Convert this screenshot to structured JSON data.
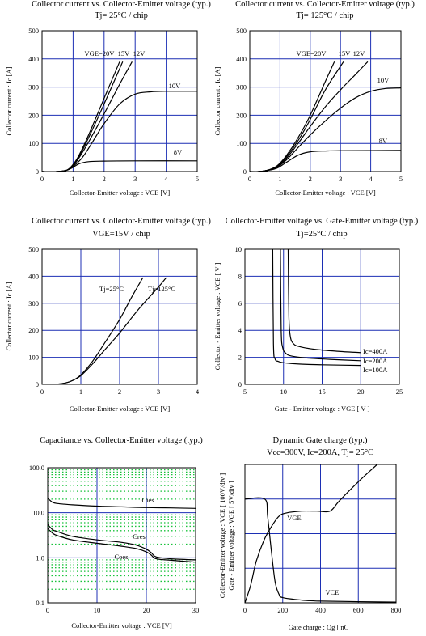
{
  "chart_data": [
    {
      "type": "line",
      "title": "Collector current vs. Collector-Emitter voltage (typ.)",
      "subtitle": "Tj= 25°C / chip",
      "xlabel": "Collector-Emitter voltage : VCE [V]",
      "ylabel": "Collector current : Ic [A]",
      "xlim": [
        0,
        5
      ],
      "ylim": [
        0,
        500
      ],
      "xticks": [
        "0",
        "1",
        "2",
        "3",
        "4",
        "5"
      ],
      "yticks": [
        "0",
        "100",
        "200",
        "300",
        "400",
        "500"
      ],
      "grid": true,
      "series": [
        {
          "name": "VGE=20V",
          "x": [
            0,
            0.5,
            0.8,
            1.0,
            1.2,
            1.5,
            2.0,
            2.5
          ],
          "y": [
            0,
            0,
            5,
            25,
            60,
            130,
            260,
            390
          ]
        },
        {
          "name": "15V",
          "x": [
            0,
            0.5,
            0.8,
            1.0,
            1.2,
            1.5,
            2.0,
            2.6
          ],
          "y": [
            0,
            0,
            5,
            22,
            55,
            120,
            240,
            390
          ]
        },
        {
          "name": "12V",
          "x": [
            0,
            0.5,
            0.8,
            1.0,
            1.2,
            1.5,
            2.0,
            2.5,
            2.9
          ],
          "y": [
            0,
            0,
            5,
            20,
            50,
            105,
            205,
            310,
            390
          ]
        },
        {
          "name": "10V",
          "x": [
            0,
            0.5,
            0.8,
            1.0,
            1.3,
            1.6,
            2.0,
            2.5,
            3.0,
            3.5,
            4.0,
            5.0
          ],
          "y": [
            0,
            0,
            5,
            18,
            50,
            100,
            170,
            240,
            275,
            283,
            285,
            285
          ]
        },
        {
          "name": "8V",
          "x": [
            0,
            0.5,
            0.8,
            1.0,
            1.2,
            1.5,
            2.0,
            3.0,
            5.0
          ],
          "y": [
            0,
            0,
            5,
            15,
            28,
            35,
            37,
            38,
            38
          ]
        }
      ]
    },
    {
      "type": "line",
      "title": "Collector current vs. Collector-Emitter voltage (typ.)",
      "subtitle": "Tj= 125°C / chip",
      "xlabel": "Collector-Emitter voltage : VCE [V]",
      "ylabel": "Collector current : Ic [A]",
      "xlim": [
        0,
        5
      ],
      "ylim": [
        0,
        500
      ],
      "xticks": [
        "0",
        "1",
        "2",
        "3",
        "4",
        "5"
      ],
      "yticks": [
        "0",
        "100",
        "200",
        "300",
        "400",
        "500"
      ],
      "grid": true,
      "series": [
        {
          "name": "VGE=20V",
          "x": [
            0,
            0.3,
            0.6,
            0.9,
            1.2,
            1.6,
            2.0,
            2.5,
            2.8
          ],
          "y": [
            0,
            0,
            5,
            20,
            55,
            120,
            200,
            320,
            390
          ]
        },
        {
          "name": "15V",
          "x": [
            0,
            0.3,
            0.6,
            0.9,
            1.2,
            1.6,
            2.0,
            2.5,
            3.1
          ],
          "y": [
            0,
            0,
            5,
            18,
            50,
            110,
            185,
            290,
            390
          ]
        },
        {
          "name": "12V",
          "x": [
            0,
            0.3,
            0.6,
            0.9,
            1.2,
            1.6,
            2.0,
            2.5,
            3.0,
            3.5,
            3.9
          ],
          "y": [
            0,
            0,
            5,
            16,
            45,
            100,
            160,
            230,
            290,
            345,
            390
          ]
        },
        {
          "name": "10V",
          "x": [
            0,
            0.3,
            0.6,
            0.9,
            1.2,
            1.6,
            2.0,
            2.5,
            3.0,
            3.5,
            4.0,
            4.5,
            5.0
          ],
          "y": [
            0,
            0,
            5,
            15,
            40,
            85,
            130,
            180,
            225,
            262,
            285,
            295,
            297
          ]
        },
        {
          "name": "8V",
          "x": [
            0,
            0.3,
            0.6,
            0.9,
            1.2,
            1.6,
            2.0,
            2.5,
            3.0,
            5.0
          ],
          "y": [
            0,
            0,
            4,
            12,
            32,
            58,
            70,
            73,
            74,
            75
          ]
        }
      ]
    },
    {
      "type": "line",
      "title": "Collector current vs. Collector-Emitter voltage (typ.)",
      "subtitle": "VGE=15V / chip",
      "xlabel": "Collector-Emitter voltage : VCE [V]",
      "ylabel": "Collector current : Ic [A]",
      "xlim": [
        0,
        4
      ],
      "ylim": [
        0,
        500
      ],
      "xticks": [
        "0",
        "1",
        "2",
        "3",
        "4"
      ],
      "yticks": [
        "0",
        "100",
        "200",
        "300",
        "400",
        "500"
      ],
      "grid": true,
      "series": [
        {
          "name": "Tj=25°C",
          "x": [
            0,
            0.3,
            0.6,
            0.8,
            1.0,
            1.3,
            1.6,
            2.0,
            2.3,
            2.6
          ],
          "y": [
            0,
            0,
            5,
            15,
            35,
            85,
            150,
            240,
            320,
            395
          ]
        },
        {
          "name": "Tj=125°C",
          "x": [
            0,
            0.3,
            0.6,
            0.8,
            1.0,
            1.3,
            1.6,
            2.0,
            2.5,
            3.0,
            3.2
          ],
          "y": [
            0,
            0,
            5,
            15,
            32,
            75,
            125,
            190,
            280,
            360,
            395
          ]
        }
      ]
    },
    {
      "type": "line",
      "title": "Collector-Emitter voltage vs. Gate-Emitter voltage (typ.)",
      "subtitle": "Tj=25°C / chip",
      "xlabel": "Gate - Emitter voltage : VGE [ V ]",
      "ylabel": "Collector - Emitter voltage : VCE [ V ]",
      "xlim": [
        5,
        25
      ],
      "ylim": [
        0,
        10
      ],
      "xticks": [
        "5",
        "10",
        "15",
        "20",
        "25"
      ],
      "yticks": [
        "0",
        "2",
        "4",
        "6",
        "8",
        "10"
      ],
      "grid": true,
      "series": [
        {
          "name": "Ic=400A",
          "x": [
            10.6,
            10.7,
            10.9,
            11.3,
            12,
            14,
            17,
            20
          ],
          "y": [
            10,
            5,
            3.5,
            3.0,
            2.8,
            2.6,
            2.45,
            2.35
          ]
        },
        {
          "name": "Ic=200A",
          "x": [
            9.6,
            9.7,
            9.9,
            10.3,
            11,
            13,
            16,
            20
          ],
          "y": [
            10,
            4,
            2.7,
            2.3,
            2.1,
            1.95,
            1.85,
            1.75
          ]
        },
        {
          "name": "Ic=100A",
          "x": [
            8.6,
            8.7,
            8.9,
            9.3,
            10,
            12,
            15,
            20
          ],
          "y": [
            10,
            3,
            1.9,
            1.7,
            1.6,
            1.5,
            1.45,
            1.4
          ]
        }
      ]
    },
    {
      "type": "line",
      "title": "Capacitance vs. Collector-Emitter voltage (typ.)",
      "xlabel": "Collector-Emitter voltage : VCE [V]",
      "ylabel": "",
      "xlim": [
        0,
        30
      ],
      "ylim": [
        0.1,
        100
      ],
      "yscale": "log",
      "xticks": [
        "0",
        "10",
        "20",
        "30"
      ],
      "yticks": [
        "0.1",
        "1.0",
        "10.0",
        "100.0"
      ],
      "grid": true,
      "series": [
        {
          "name": "Cies",
          "x": [
            0,
            1,
            2,
            5,
            10,
            15,
            20,
            25,
            30
          ],
          "y": [
            21,
            17,
            16,
            15,
            14,
            13.5,
            13,
            12.8,
            12.5
          ]
        },
        {
          "name": "Cres",
          "x": [
            0,
            1,
            2,
            5,
            10,
            15,
            18,
            20,
            21,
            22,
            25,
            30
          ],
          "y": [
            5.5,
            4.2,
            3.8,
            3.0,
            2.5,
            2.2,
            1.9,
            1.55,
            1.3,
            1.05,
            0.95,
            0.9
          ]
        },
        {
          "name": "Coes",
          "x": [
            0,
            1,
            2,
            5,
            10,
            15,
            18,
            20,
            21,
            22,
            25,
            30
          ],
          "y": [
            4.5,
            3.5,
            3.1,
            2.5,
            2.1,
            1.8,
            1.6,
            1.35,
            1.15,
            0.95,
            0.88,
            0.8
          ]
        }
      ]
    },
    {
      "type": "line",
      "title": "Dynamic Gate charge (typ.)",
      "subtitle": "Vcc=300V,  Ic=200A, Tj= 25°C",
      "xlabel": "Gate charge : Qg [ nC ]",
      "ylabel": "Collector-Emitter voltage : VCE [ 100V/div ]",
      "ylabel2": "Gate - Emitter voltage : VGE [ 5V/div ]",
      "xlim": [
        0,
        800
      ],
      "ylim": [
        0,
        4
      ],
      "xticks": [
        "0",
        "200",
        "400",
        "600",
        "800"
      ],
      "grid": true,
      "series": [
        {
          "name": "VGE",
          "x": [
            0,
            30,
            60,
            100,
            140,
            180,
            220,
            300,
            380,
            450,
            500,
            600,
            700,
            800
          ],
          "y": [
            0,
            0.5,
            1.2,
            1.8,
            2.2,
            2.5,
            2.6,
            2.65,
            2.65,
            2.65,
            2.95,
            3.5,
            4.0,
            4.5
          ]
        },
        {
          "name": "VCE",
          "x": [
            0,
            105,
            120,
            140,
            160,
            180,
            200,
            300,
            400,
            800
          ],
          "y": [
            3.0,
            3.0,
            2.5,
            1.5,
            0.6,
            0.25,
            0.15,
            0.08,
            0.05,
            0.02
          ]
        }
      ]
    }
  ]
}
